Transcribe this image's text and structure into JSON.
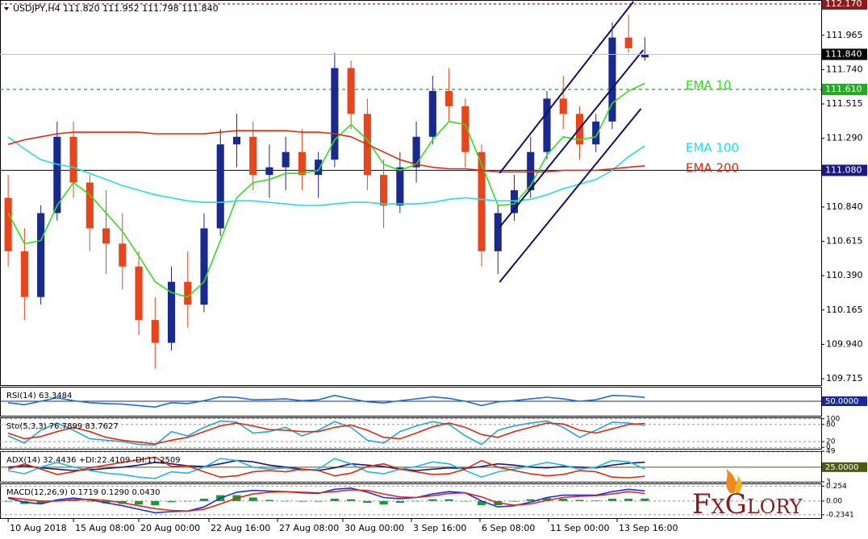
{
  "brand": "FxGlory",
  "chart_data": [
    {
      "type": "candlestick",
      "header": "USDJPY,H4  111.820 111.952 111.798 111.840",
      "xlim": [
        -0.5,
        49.8
      ],
      "xticks": [
        {
          "value": 0,
          "label": "10 Aug 2018"
        },
        {
          "value": 4,
          "label": "15 Aug 08:00"
        },
        {
          "value": 8,
          "label": "20 Aug 00:00"
        },
        {
          "value": 12.3,
          "label": "22 Aug 16:00"
        },
        {
          "value": 16.5,
          "label": "27 Aug 08:00"
        },
        {
          "value": 20.5,
          "label": "30 Aug 00:00"
        },
        {
          "value": 24.7,
          "label": "3 Sep 16:00"
        },
        {
          "value": 28.9,
          "label": "6 Sep 08:00"
        },
        {
          "value": 33.1,
          "label": "11 Sep 00:00"
        },
        {
          "value": 37.3,
          "label": "13 Sep 16:00"
        }
      ],
      "ylim": [
        109.673,
        112.196
      ],
      "yticks": [
        111.965,
        {
          "value": 111.74,
          "label": "111.740"
        },
        111.515,
        {
          "value": 111.29,
          "label": "111.290"
        },
        {
          "value": 110.84,
          "label": "110.840"
        },
        110.615,
        {
          "value": 110.39,
          "label": "110.390"
        },
        110.165,
        {
          "value": 109.94,
          "label": "109.940"
        },
        109.715
      ],
      "up_color": "#1a2a8c",
      "down_color": "#e8451c",
      "open": [
        110.9,
        110.55,
        110.25,
        110.8,
        111.3,
        111.0,
        110.7,
        110.6,
        110.45,
        110.1,
        109.95,
        110.35,
        110.2,
        110.7,
        111.25,
        111.3,
        111.05,
        111.1,
        111.2,
        111.05,
        111.15,
        111.75,
        111.45,
        111.05,
        110.85,
        111.1,
        111.3,
        111.6,
        111.5,
        111.2,
        110.55,
        110.8,
        110.95,
        111.2,
        111.55,
        111.45,
        111.25,
        111.4,
        111.95,
        111.82
      ],
      "high": [
        111.05,
        110.7,
        110.85,
        111.4,
        111.4,
        111.05,
        110.95,
        110.8,
        110.55,
        110.25,
        110.45,
        110.55,
        110.8,
        111.35,
        111.45,
        111.4,
        111.25,
        111.3,
        111.35,
        111.2,
        111.85,
        111.8,
        111.55,
        111.15,
        111.2,
        111.4,
        111.7,
        111.75,
        111.55,
        111.25,
        110.85,
        111.05,
        111.3,
        111.6,
        111.7,
        111.5,
        111.45,
        112.05,
        112.1,
        111.952
      ],
      "low": [
        110.45,
        110.1,
        110.2,
        110.75,
        110.9,
        110.55,
        110.4,
        110.3,
        110.0,
        109.78,
        109.9,
        110.05,
        110.15,
        110.65,
        111.1,
        110.95,
        110.9,
        110.95,
        110.95,
        110.9,
        111.1,
        111.35,
        110.95,
        110.7,
        110.8,
        111.0,
        111.25,
        111.4,
        111.1,
        110.45,
        110.4,
        110.75,
        110.9,
        111.15,
        111.35,
        111.15,
        111.2,
        111.35,
        111.85,
        111.798
      ],
      "close": [
        110.55,
        110.25,
        110.8,
        111.3,
        111.0,
        110.7,
        110.6,
        110.45,
        110.1,
        109.95,
        110.35,
        110.2,
        110.7,
        111.25,
        111.3,
        111.05,
        111.1,
        111.2,
        111.05,
        111.15,
        111.75,
        111.45,
        111.05,
        110.85,
        111.1,
        111.3,
        111.6,
        111.5,
        111.2,
        110.55,
        110.8,
        110.95,
        111.2,
        111.55,
        111.45,
        111.25,
        111.4,
        111.95,
        111.88,
        111.84
      ],
      "series": [
        {
          "name": "EMA 10",
          "color": "#33dd22",
          "values": [
            110.8,
            110.6,
            110.62,
            110.85,
            111.0,
            110.92,
            110.8,
            110.68,
            110.52,
            110.35,
            110.28,
            110.25,
            110.35,
            110.62,
            110.9,
            111.0,
            111.02,
            111.06,
            111.06,
            111.08,
            111.28,
            111.38,
            111.28,
            111.12,
            111.08,
            111.12,
            111.28,
            111.4,
            111.38,
            111.12,
            110.85,
            110.86,
            110.98,
            111.18,
            111.3,
            111.28,
            111.3,
            111.52,
            111.6,
            111.65
          ]
        },
        {
          "name": "EMA 100",
          "color": "#22dde8",
          "values": [
            111.3,
            111.22,
            111.15,
            111.12,
            111.1,
            111.06,
            111.02,
            110.98,
            110.95,
            110.92,
            110.9,
            110.88,
            110.87,
            110.87,
            110.88,
            110.88,
            110.87,
            110.86,
            110.85,
            110.85,
            110.86,
            110.87,
            110.87,
            110.86,
            110.86,
            110.86,
            110.87,
            110.89,
            110.9,
            110.89,
            110.88,
            110.88,
            110.89,
            110.92,
            110.96,
            110.99,
            111.02,
            111.08,
            111.17,
            111.24
          ]
        },
        {
          "name": "EMA 200",
          "color": "#e02a10",
          "values": [
            111.25,
            111.28,
            111.3,
            111.32,
            111.33,
            111.33,
            111.33,
            111.33,
            111.33,
            111.32,
            111.32,
            111.32,
            111.32,
            111.33,
            111.34,
            111.34,
            111.34,
            111.34,
            111.33,
            111.33,
            111.32,
            111.3,
            111.25,
            111.2,
            111.15,
            111.12,
            111.1,
            111.09,
            111.09,
            111.08,
            111.07,
            111.07,
            111.07,
            111.07,
            111.08,
            111.08,
            111.08,
            111.09,
            111.1,
            111.11
          ]
        }
      ],
      "levels": [
        {
          "value": 112.17,
          "label": "112.170",
          "color": "#8b1a1a",
          "dash": "3,3"
        },
        {
          "value": 111.61,
          "label": "111.610",
          "color": "#22aa22",
          "dash": "4,4"
        },
        {
          "value": 111.08,
          "label": "111.080",
          "color": "#1a1a80",
          "dash": "none"
        }
      ],
      "price": {
        "value": 111.84,
        "label": "111.840",
        "color": "#000000"
      },
      "channel_color": "#10106a",
      "channel": [
        {
          "x": [
            30.1,
            38.3
          ],
          "y": [
            111.061,
            112.186
          ]
        },
        {
          "x": [
            30.1,
            38.9
          ],
          "y": [
            110.707,
            111.869
          ]
        },
        {
          "x": [
            30.1,
            38.76
          ],
          "y": [
            110.348,
            111.484
          ]
        }
      ]
    },
    {
      "type": "line",
      "title": "RSI(14) 63.3484",
      "ylim": [
        0,
        100
      ],
      "level": {
        "value": 50,
        "label": "50.0000",
        "color": "#1a2a9c"
      },
      "series": [
        {
          "color": "#1e6fd6",
          "values": [
            45,
            38,
            50,
            62,
            52,
            45,
            42,
            40,
            35,
            30,
            45,
            42,
            52,
            65,
            63,
            55,
            56,
            58,
            52,
            55,
            70,
            58,
            48,
            44,
            52,
            58,
            65,
            60,
            50,
            35,
            48,
            52,
            58,
            64,
            58,
            50,
            55,
            70,
            68,
            63.3484
          ]
        }
      ]
    },
    {
      "type": "line",
      "title": "Sto(5,3,3) 76.7899 83.7627",
      "ylim": [
        -5,
        105
      ],
      "yticks": [
        100,
        80,
        20,
        0
      ],
      "series": [
        {
          "color": "#22a8d8",
          "values": [
            40,
            15,
            60,
            85,
            60,
            30,
            25,
            20,
            10,
            8,
            55,
            40,
            70,
            92,
            88,
            50,
            55,
            70,
            40,
            60,
            90,
            70,
            25,
            15,
            55,
            75,
            90,
            80,
            40,
            10,
            60,
            75,
            85,
            92,
            70,
            35,
            60,
            88,
            85,
            76.7899
          ]
        },
        {
          "color": "#e02a10",
          "values": [
            50,
            30,
            38,
            55,
            70,
            55,
            35,
            25,
            18,
            12,
            25,
            35,
            55,
            75,
            85,
            75,
            62,
            60,
            55,
            55,
            70,
            78,
            60,
            35,
            30,
            50,
            72,
            85,
            70,
            45,
            35,
            55,
            70,
            85,
            82,
            60,
            50,
            65,
            80,
            83.7627
          ]
        }
      ]
    },
    {
      "type": "line",
      "title": "ADX(14) 32.4436 +DI:22.4109 -DI:11.2509",
      "ylim": [
        3,
        49
      ],
      "yticks": [
        49,
        3
      ],
      "level": {
        "value": 25,
        "label": "25.0000",
        "color": "#4a5a10"
      },
      "series": [
        {
          "color": "#1a1a80",
          "values": [
            25,
            27,
            24,
            22,
            20,
            21,
            23,
            25,
            28,
            32,
            30,
            27,
            26,
            30,
            35,
            33,
            28,
            25,
            22,
            20,
            24,
            30,
            28,
            26,
            22,
            20,
            22,
            24,
            23,
            26,
            30,
            28,
            25,
            24,
            26,
            25,
            24,
            28,
            31,
            32.4436
          ]
        },
        {
          "color": "#22b8e0",
          "values": [
            20,
            15,
            25,
            32,
            25,
            20,
            16,
            14,
            10,
            8,
            18,
            16,
            25,
            38,
            35,
            25,
            22,
            24,
            20,
            22,
            38,
            30,
            18,
            15,
            22,
            26,
            33,
            30,
            20,
            10,
            18,
            22,
            27,
            32,
            28,
            22,
            25,
            35,
            33,
            22.4109
          ]
        },
        {
          "color": "#e02a10",
          "values": [
            22,
            30,
            22,
            14,
            18,
            24,
            28,
            32,
            36,
            40,
            26,
            27,
            18,
            10,
            12,
            18,
            20,
            18,
            22,
            20,
            12,
            16,
            26,
            30,
            22,
            18,
            14,
            15,
            22,
            35,
            25,
            20,
            15,
            12,
            14,
            20,
            18,
            10,
            9,
            11.2509
          ]
        }
      ]
    },
    {
      "type": "macd",
      "title": "MACD(12,26,9) 0.1719 0.1290 0.0430",
      "ylim": [
        -0.29,
        0.3
      ],
      "yticks": [
        0.254,
        {
          "value": 0,
          "label": "0.00"
        },
        -0.2341
      ],
      "histogram": {
        "color": "#1a9a30",
        "values": [
          -0.01,
          -0.05,
          -0.05,
          0.02,
          0.03,
          -0.01,
          -0.04,
          -0.05,
          -0.06,
          -0.07,
          -0.02,
          0.0,
          0.04,
          0.1,
          0.1,
          0.06,
          0.02,
          0.0,
          -0.01,
          -0.01,
          0.04,
          0.03,
          -0.03,
          -0.06,
          -0.03,
          0.0,
          0.03,
          0.03,
          0.0,
          -0.07,
          -0.07,
          -0.01,
          0.03,
          0.05,
          0.04,
          0.02,
          0.01,
          0.04,
          0.04,
          0.043
        ]
      },
      "series": [
        {
          "color": "#1a30e0",
          "values": [
            0.05,
            -0.02,
            -0.05,
            0.02,
            0.05,
            0.02,
            -0.03,
            -0.08,
            -0.14,
            -0.2,
            -0.18,
            -0.17,
            -0.1,
            0.05,
            0.15,
            0.18,
            0.17,
            0.16,
            0.14,
            0.13,
            0.2,
            0.22,
            0.15,
            0.06,
            0.04,
            0.06,
            0.12,
            0.16,
            0.14,
            0.0,
            -0.1,
            -0.08,
            -0.02,
            0.06,
            0.1,
            0.1,
            0.1,
            0.16,
            0.2,
            0.1719
          ]
        },
        {
          "color": "#e02a10",
          "values": [
            0.06,
            0.03,
            0.0,
            0.0,
            0.02,
            0.03,
            0.01,
            -0.03,
            -0.08,
            -0.13,
            -0.16,
            -0.17,
            -0.14,
            -0.05,
            0.05,
            0.12,
            0.15,
            0.16,
            0.15,
            0.14,
            0.16,
            0.19,
            0.18,
            0.12,
            0.07,
            0.06,
            0.09,
            0.13,
            0.14,
            0.07,
            -0.03,
            -0.07,
            -0.05,
            0.01,
            0.06,
            0.08,
            0.09,
            0.12,
            0.16,
            0.129
          ]
        }
      ]
    }
  ]
}
